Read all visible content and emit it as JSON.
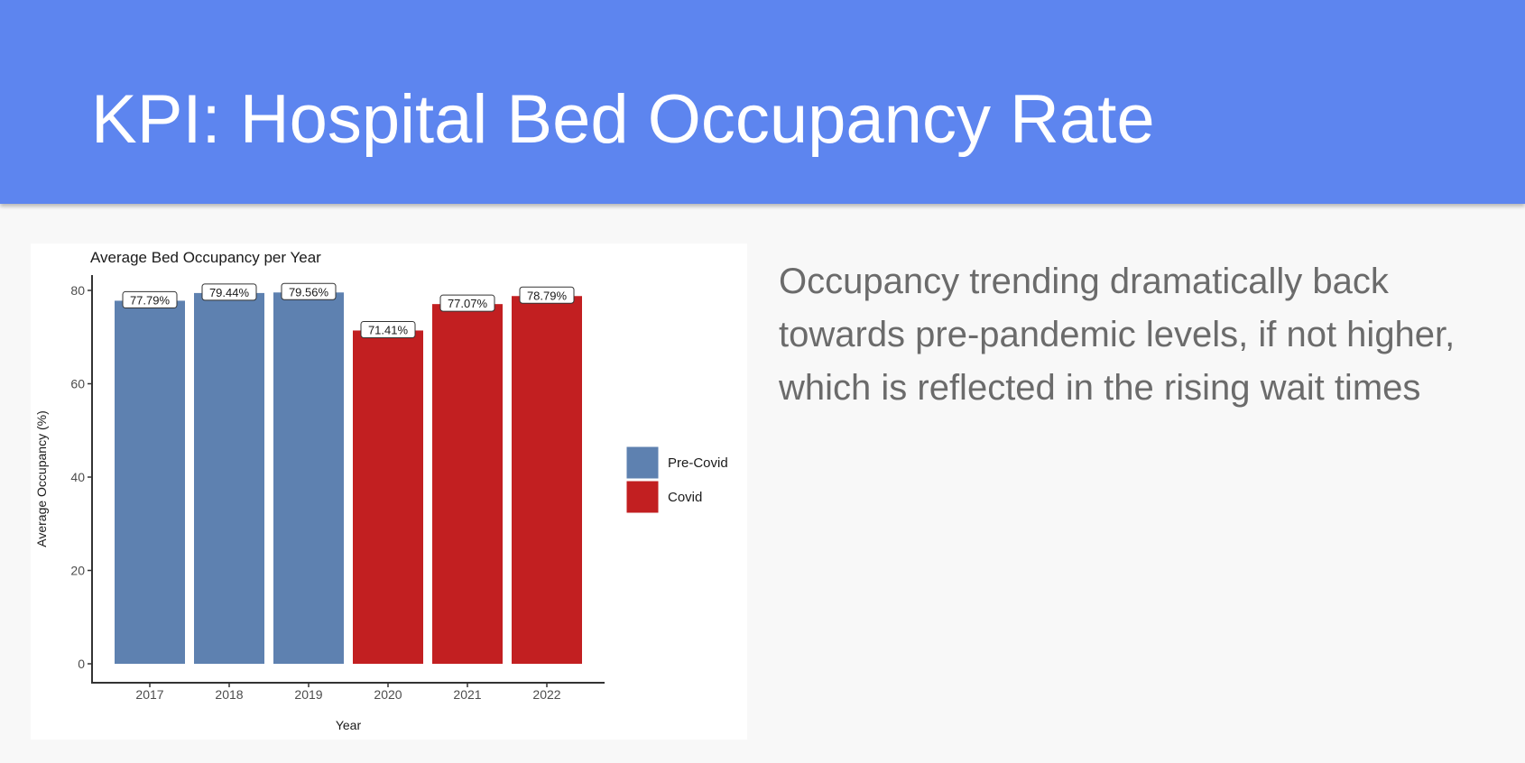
{
  "slide": {
    "title": "KPI: Hospital Bed Occupancy Rate",
    "body": "Occupancy trending dramatically back towards pre-pandemic levels, if not higher, which is reflected in the rising wait times",
    "header_color": "#5d85ef"
  },
  "chart_data": {
    "type": "bar",
    "title": "Average Bed Occupancy per Year",
    "xlabel": "Year",
    "ylabel": "Average Occupancy (%)",
    "categories": [
      "2017",
      "2018",
      "2019",
      "2020",
      "2021",
      "2022"
    ],
    "values": [
      77.79,
      79.44,
      79.56,
      71.41,
      77.07,
      78.79
    ],
    "data_labels": [
      "77.79%",
      "79.44%",
      "79.56%",
      "71.41%",
      "77.07%",
      "78.79%"
    ],
    "groups": [
      "Pre-Covid",
      "Pre-Covid",
      "Pre-Covid",
      "Covid",
      "Covid",
      "Covid"
    ],
    "legend": [
      {
        "name": "Pre-Covid",
        "color": "#5e81b0"
      },
      {
        "name": "Covid",
        "color": "#c21f21"
      }
    ],
    "legend_position": "right",
    "yticks": [
      0,
      20,
      40,
      60,
      80
    ],
    "ylim": [
      0,
      84
    ],
    "grid": false
  }
}
